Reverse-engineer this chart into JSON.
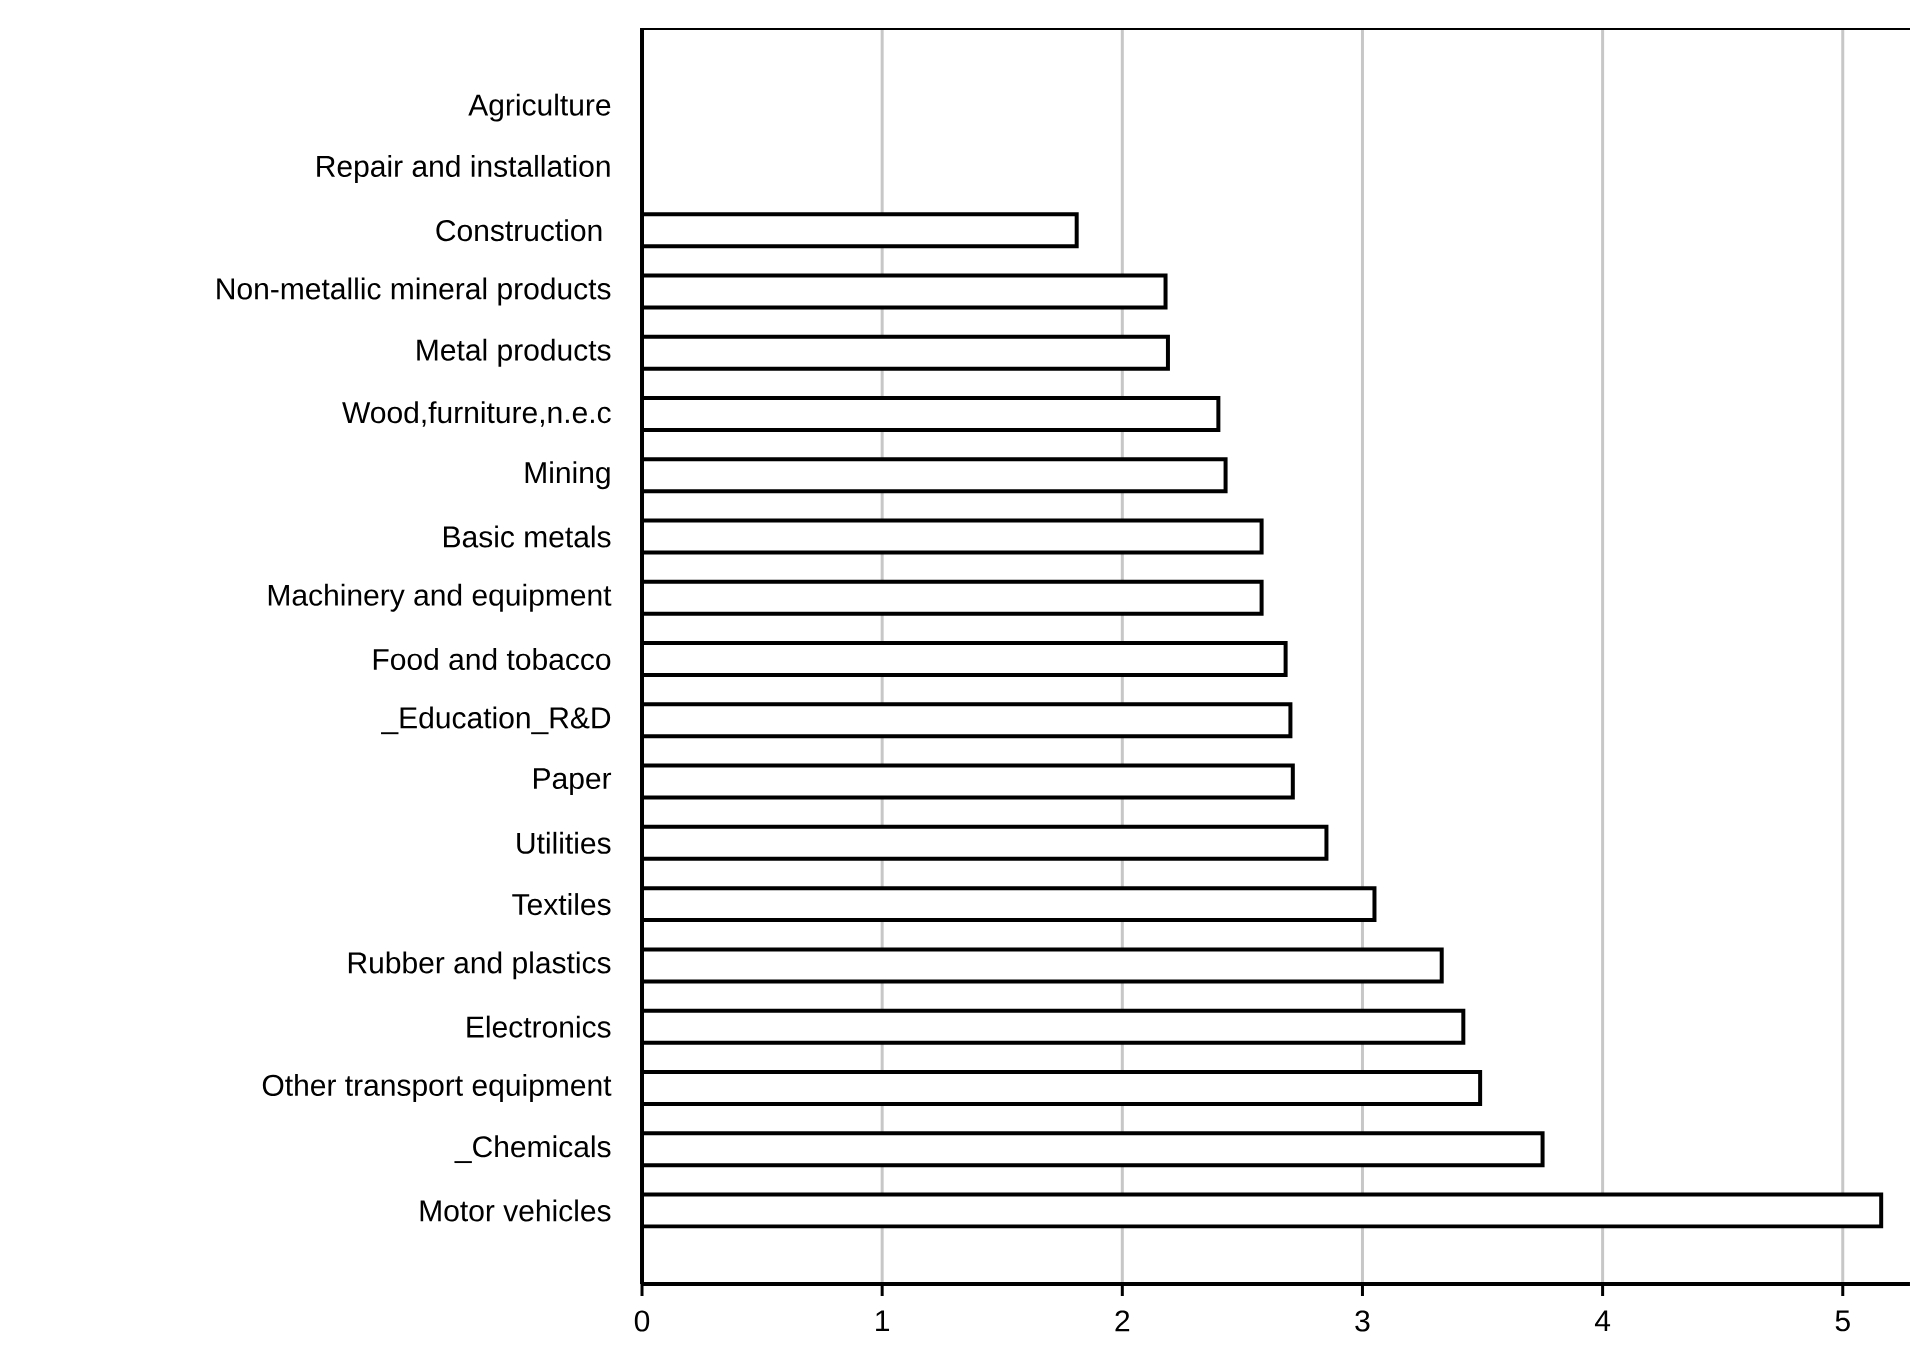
{
  "chart_data": {
    "type": "bar",
    "orientation": "horizontal",
    "categories": [
      "Agriculture",
      "Repair and installation",
      "Construction ",
      "Non-metallic mineral products",
      "Metal products",
      "Wood,furniture,n.e.c",
      "Mining",
      "Basic metals",
      "Machinery and equipment",
      "Food and tobacco",
      "_Education_R&D",
      "Paper",
      "Utilities",
      "Textiles",
      "Rubber and plastics",
      "Electronics",
      "Other transport equipment",
      "_Chemicals",
      "Motor vehicles"
    ],
    "values": [
      null,
      null,
      1.81,
      2.18,
      2.19,
      2.4,
      2.43,
      2.58,
      2.58,
      2.68,
      2.7,
      2.71,
      2.85,
      3.05,
      3.33,
      3.42,
      3.49,
      3.75,
      5.16
    ],
    "color": "#ffffff",
    "xlim": [
      0,
      5.28
    ],
    "xticks": [
      0,
      1,
      2,
      3,
      4,
      5
    ],
    "grid": "x"
  }
}
